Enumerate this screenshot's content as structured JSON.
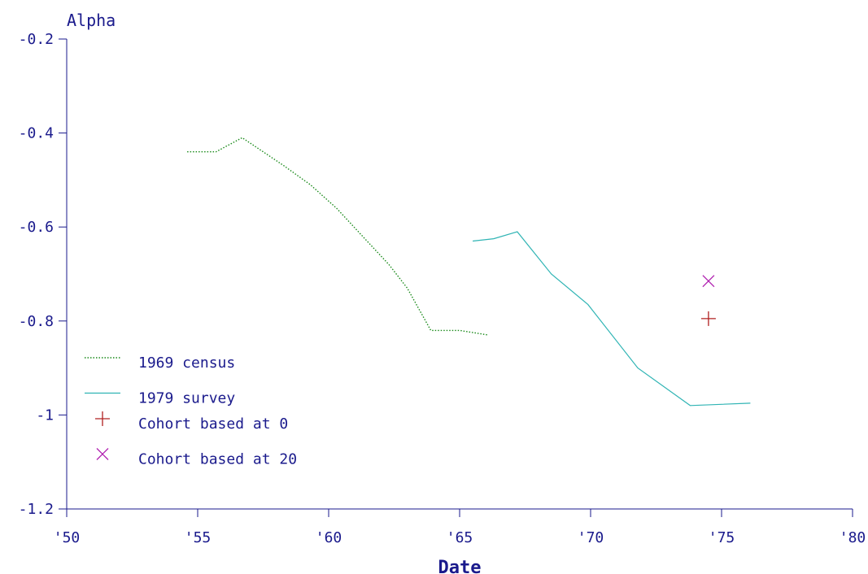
{
  "chart_data": {
    "type": "line",
    "title": "",
    "xlabel": "Date",
    "ylabel": "Alpha",
    "xlim": [
      1950,
      1980
    ],
    "ylim": [
      -1.2,
      -0.2
    ],
    "x_ticks": [
      1950,
      1955,
      1960,
      1965,
      1970,
      1975,
      1980
    ],
    "x_tick_labels": [
      "'50",
      "'55",
      "'60",
      "'65",
      "'70",
      "'75",
      "'80"
    ],
    "y_ticks": [
      -0.2,
      -0.4,
      -0.6,
      -0.8,
      -1,
      -1.2
    ],
    "y_tick_labels": [
      "-0.2",
      "-0.4",
      "-0.6",
      "-0.8",
      "-1",
      "-1.2"
    ],
    "grid": false,
    "legend_position": "bottom-left",
    "series": [
      {
        "name": "1969 census",
        "kind": "line",
        "style": "dotted",
        "color": "#1a8a1a",
        "x": [
          1954.6,
          1955.7,
          1956.7,
          1957.5,
          1958.3,
          1959.3,
          1960.3,
          1961.3,
          1962.3,
          1963.0,
          1963.9,
          1965.0,
          1966.1
        ],
        "y": [
          -0.44,
          -0.44,
          -0.41,
          -0.44,
          -0.47,
          -0.51,
          -0.56,
          -0.62,
          -0.68,
          -0.73,
          -0.82,
          -0.82,
          -0.83
        ]
      },
      {
        "name": "1979 survey",
        "kind": "line",
        "style": "solid",
        "color": "#2fb4b4",
        "x": [
          1965.5,
          1966.3,
          1967.2,
          1968.5,
          1969.9,
          1971.8,
          1973.8,
          1976.1
        ],
        "y": [
          -0.63,
          -0.625,
          -0.61,
          -0.7,
          -0.765,
          -0.9,
          -0.98,
          -0.975
        ]
      },
      {
        "name": "Cohort based at 0",
        "kind": "marker",
        "marker": "plus",
        "color": "#b02020",
        "x": [
          1974.5
        ],
        "y": [
          -0.795
        ]
      },
      {
        "name": "Cohort based at 20",
        "kind": "marker",
        "marker": "cross",
        "color": "#b020b0",
        "x": [
          1974.5
        ],
        "y": [
          -0.715
        ]
      }
    ]
  }
}
